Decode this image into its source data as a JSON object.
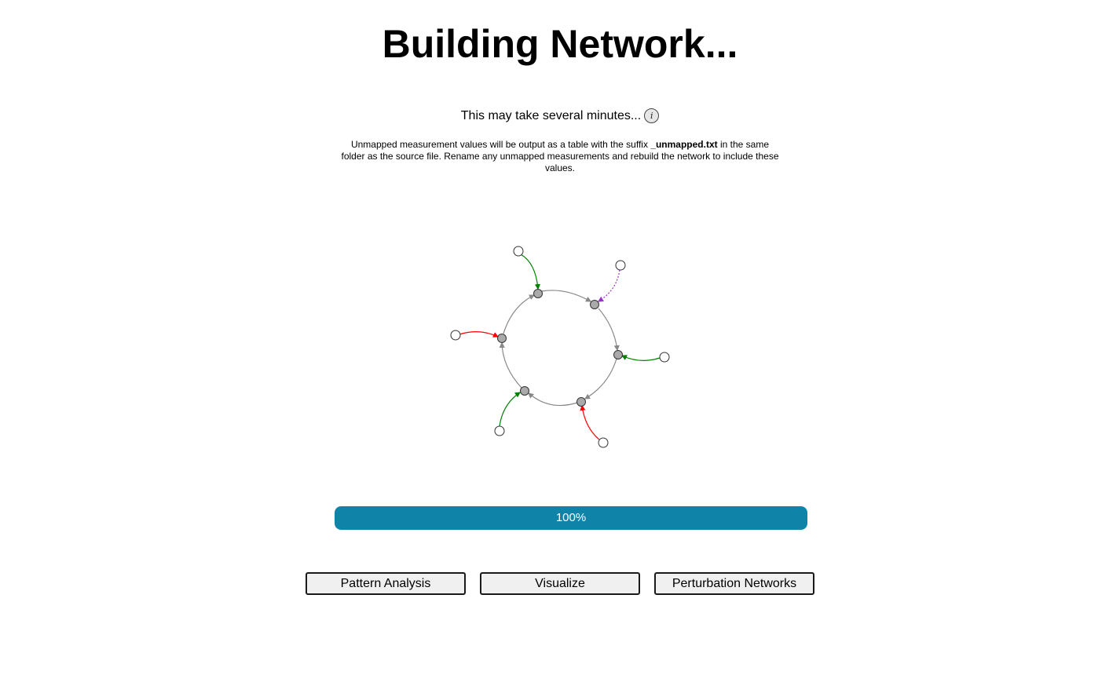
{
  "header": {
    "title": "Building Network..."
  },
  "status": {
    "message": "This may take several minutes...",
    "info_icon": "info-icon"
  },
  "note": {
    "before": "Unmapped measurement values will be output as a table with the suffix ",
    "suffix": "_unmapped.txt",
    "after": " in the same folder as the source file. Rename any unmapped measurements and rebuild the network to include these values."
  },
  "progress": {
    "value": 100,
    "label": "100%",
    "color": "#1083a8"
  },
  "actions": {
    "pattern_analysis": "Pattern Analysis",
    "visualize": "Visualize",
    "perturbation_networks": "Perturbation Networks"
  },
  "colors": {
    "activation": "#008000",
    "inhibition": "#ff0000",
    "dotted_link": "#9932cc",
    "cycle": "#888888"
  }
}
